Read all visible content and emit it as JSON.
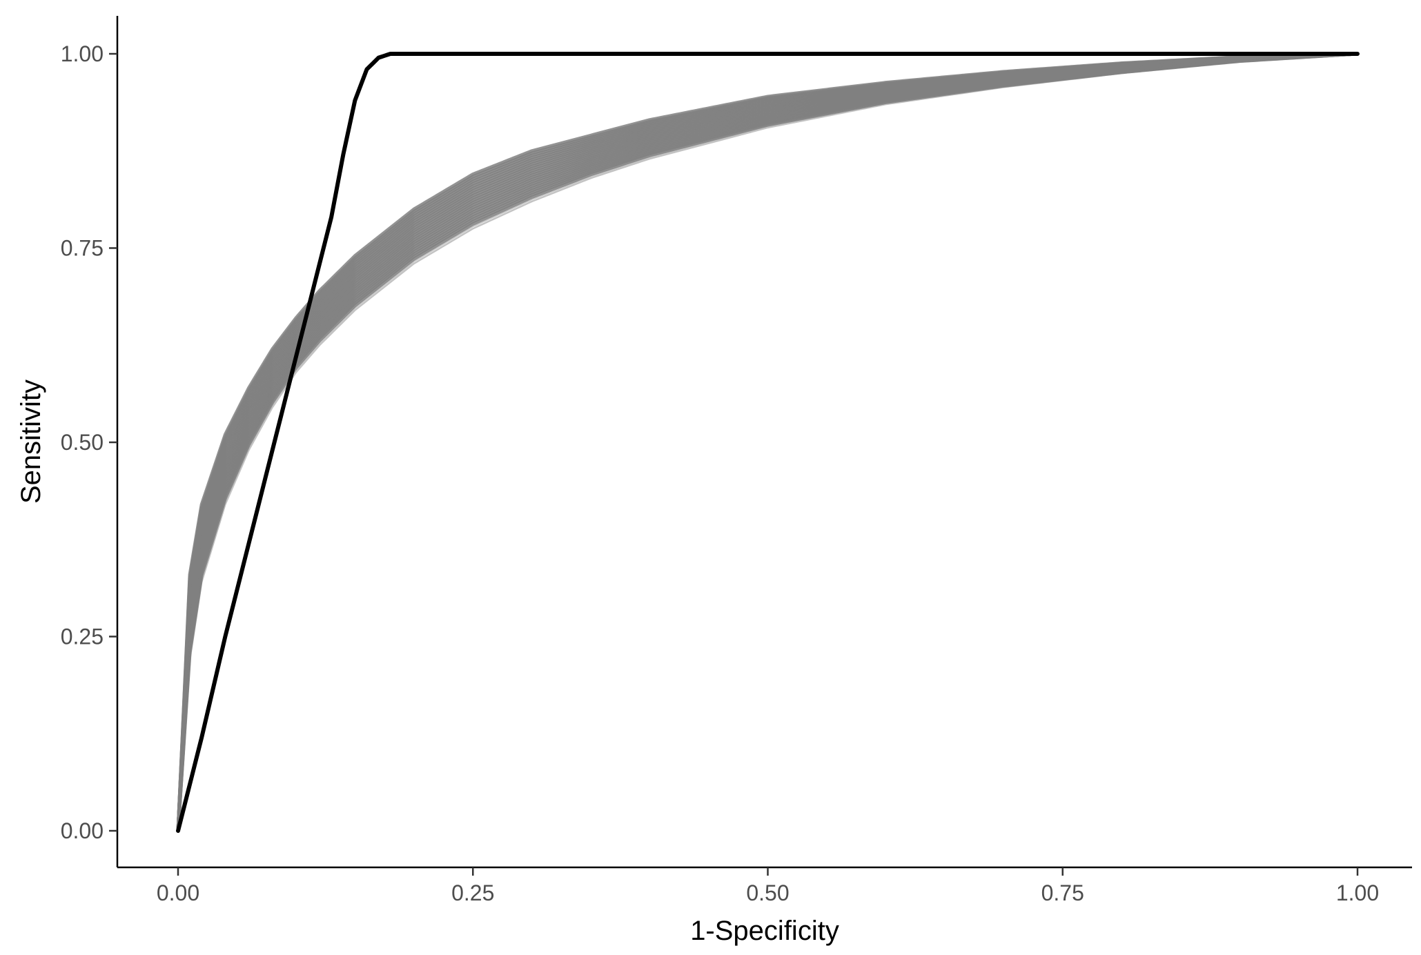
{
  "chart_data": {
    "type": "line",
    "xlabel": "1-Specificity",
    "ylabel": "Sensitivity",
    "xlim": [
      -0.05,
      1.05
    ],
    "ylim": [
      -0.05,
      1.05
    ],
    "x_ticks": [
      0,
      0.25,
      0.5,
      0.75,
      1
    ],
    "y_ticks": [
      0,
      0.25,
      0.5,
      0.75,
      1
    ],
    "x_tick_labels": [
      "0.00",
      "0.25",
      "0.50",
      "0.75",
      "1.00"
    ],
    "y_tick_labels": [
      "0.00",
      "0.25",
      "0.50",
      "0.75",
      "1.00"
    ],
    "grid": false,
    "colors": {
      "band": "#808080",
      "band_light": "#bdbdbd",
      "reference": "#000000",
      "axis": "#000000",
      "tick_text": "#4d4d4d"
    },
    "series": [
      {
        "style": "gray-band-upper",
        "x": [
          0,
          0.01,
          0.02,
          0.04,
          0.06,
          0.08,
          0.1,
          0.12,
          0.15,
          0.2,
          0.25,
          0.3,
          0.35,
          0.4,
          0.5,
          0.6,
          0.7,
          0.8,
          0.9,
          1.0
        ],
        "y": [
          0,
          0.33,
          0.42,
          0.51,
          0.57,
          0.62,
          0.66,
          0.695,
          0.74,
          0.8,
          0.845,
          0.875,
          0.895,
          0.915,
          0.945,
          0.963,
          0.977,
          0.988,
          0.996,
          1.0
        ]
      },
      {
        "style": "gray-band-lower",
        "x": [
          0,
          0.01,
          0.02,
          0.04,
          0.06,
          0.08,
          0.1,
          0.12,
          0.15,
          0.2,
          0.25,
          0.3,
          0.35,
          0.4,
          0.5,
          0.6,
          0.7,
          0.8,
          0.9,
          1.0
        ],
        "y": [
          0,
          0.22,
          0.32,
          0.42,
          0.49,
          0.545,
          0.59,
          0.625,
          0.67,
          0.73,
          0.775,
          0.81,
          0.84,
          0.865,
          0.905,
          0.935,
          0.957,
          0.975,
          0.99,
          1.0
        ]
      },
      {
        "style": "reference-black",
        "x": [
          0,
          0.02,
          0.04,
          0.06,
          0.08,
          0.1,
          0.12,
          0.13,
          0.14,
          0.15,
          0.16,
          0.17,
          0.18,
          0.19,
          0.2,
          0.25,
          0.5,
          0.75,
          1.0
        ],
        "y": [
          0,
          0.12,
          0.25,
          0.37,
          0.49,
          0.61,
          0.73,
          0.79,
          0.87,
          0.94,
          0.98,
          0.995,
          1.0,
          1.0,
          1.0,
          1.0,
          1.0,
          1.0,
          1.0
        ]
      }
    ]
  }
}
